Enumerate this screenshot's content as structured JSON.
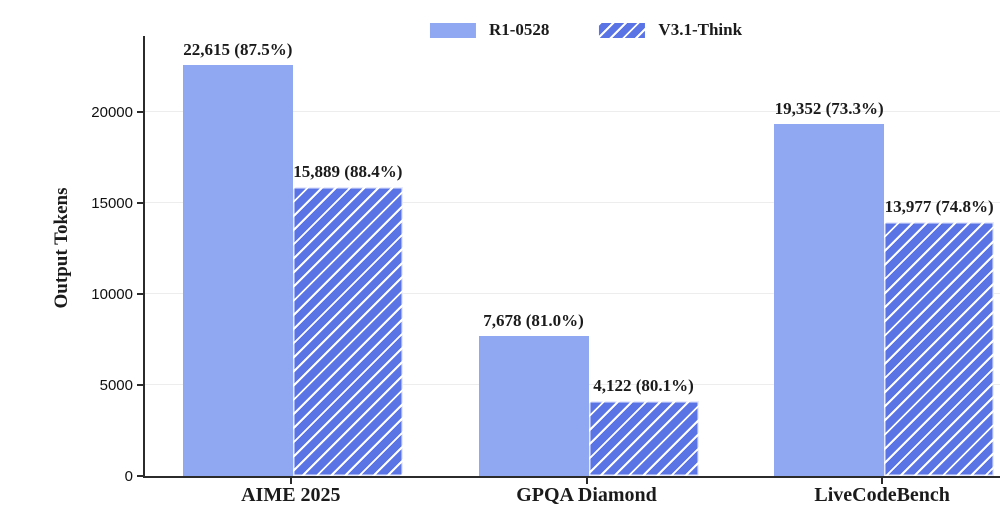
{
  "colors": {
    "solid_bar": "#90A8F2",
    "hatch_base": "#5A74E6",
    "hatch_line": "#FFFFFF",
    "axis": "#2b2b2b",
    "grid": "#ededed",
    "text": "#1b1b1b"
  },
  "legend": {
    "items": [
      {
        "label": "R1-0528",
        "style": "solid"
      },
      {
        "label": "V3.1-Think",
        "style": "hatched"
      }
    ]
  },
  "chart_data": {
    "type": "bar",
    "title": "",
    "xlabel": "",
    "ylabel": "Output Tokens",
    "categories": [
      "AIME 2025",
      "GPQA Diamond",
      "LiveCodeBench"
    ],
    "series": [
      {
        "name": "R1-0528",
        "style": "solid",
        "values": [
          22615,
          7678,
          19352
        ],
        "labels": [
          "22,615 (87.5%)",
          "7,678 (81.0%)",
          "19,352 (73.3%)"
        ]
      },
      {
        "name": "V3.1-Think",
        "style": "hatched",
        "values": [
          15889,
          4122,
          13977
        ],
        "labels": [
          "15,889 (88.4%)",
          "4,122 (80.1%)",
          "13,977 (74.8%)"
        ]
      }
    ],
    "yticks": [
      0,
      5000,
      10000,
      15000,
      20000
    ],
    "ylim": [
      0,
      24200
    ],
    "grid": true,
    "legend_position": "top-center"
  }
}
